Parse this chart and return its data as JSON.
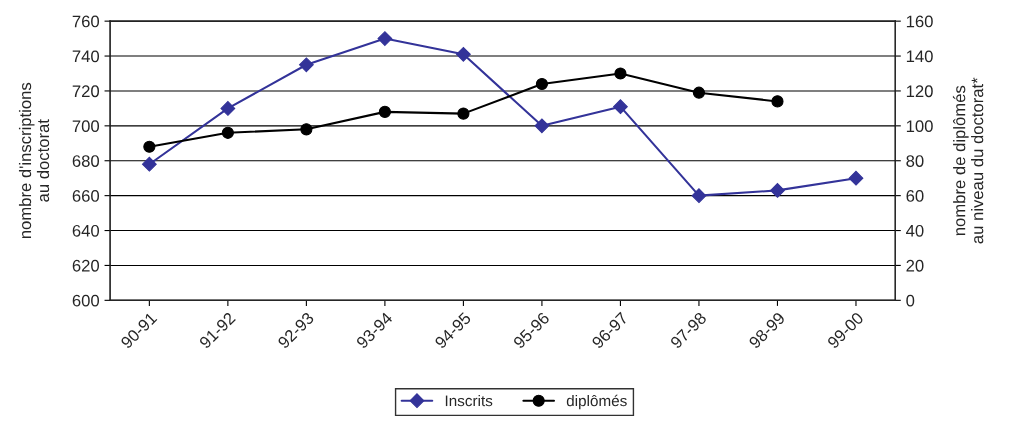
{
  "chart_data": {
    "type": "line",
    "categories": [
      "90-91",
      "91-92",
      "92-93",
      "93-94",
      "94-95",
      "95-96",
      "96-97",
      "97-98",
      "98-99",
      "99-00"
    ],
    "series": [
      {
        "name": "Inscrits",
        "color": "#333399",
        "marker": "diamond",
        "values": [
          678,
          710,
          735,
          750,
          741,
          700,
          711,
          660,
          663,
          670
        ]
      },
      {
        "name": "diplômés",
        "color": "#000000",
        "marker": "circle",
        "axis": "y2",
        "values": [
          88,
          96,
          98,
          108,
          107,
          124,
          130,
          119,
          114,
          null
        ]
      }
    ],
    "ylabel": "nombre d'inscriptions\nau doctorat",
    "y2label": "nombre de diplômés\nau niveau du doctorat*",
    "ylim": [
      600,
      760
    ],
    "yticks": [
      600,
      620,
      640,
      660,
      680,
      700,
      720,
      740,
      760
    ],
    "y2lim": [
      0,
      160
    ],
    "y2ticks": [
      0,
      20,
      40,
      60,
      80,
      100,
      120,
      140,
      160
    ],
    "grid": "y",
    "legend": "bottom"
  }
}
